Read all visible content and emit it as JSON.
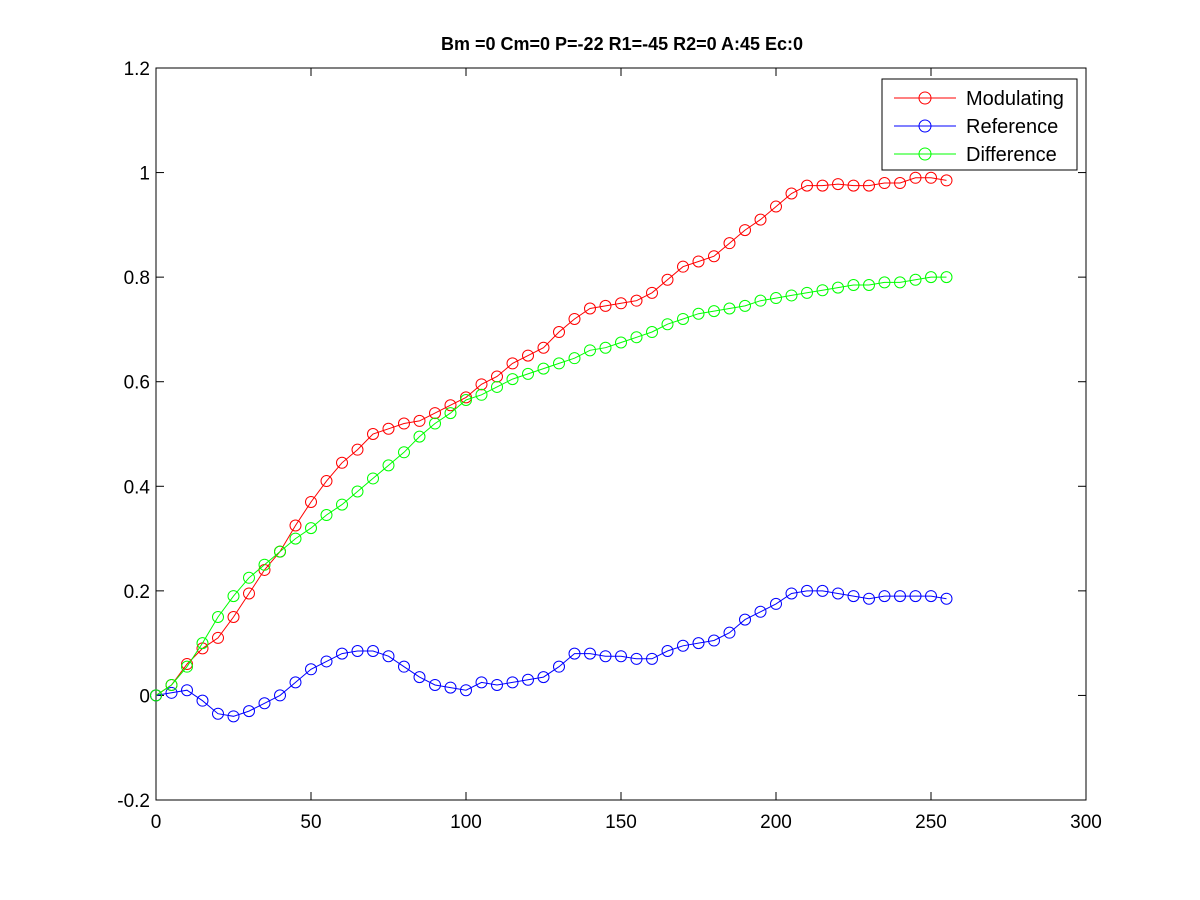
{
  "chart_data": {
    "type": "line",
    "title": "Bm =0  Cm=0  P=-22  R1=-45  R2=0  A:45  Ec:0",
    "xlabel": "",
    "ylabel": "",
    "xlim": [
      0,
      300
    ],
    "ylim": [
      -0.2,
      1.2
    ],
    "x_ticks": [
      0,
      50,
      100,
      150,
      200,
      250,
      300
    ],
    "x_tick_labels": [
      "0",
      "50",
      "100",
      "150",
      "200",
      "250",
      "300"
    ],
    "y_ticks": [
      -0.2,
      0,
      0.2,
      0.4,
      0.6,
      0.8,
      1,
      1.2
    ],
    "y_tick_labels": [
      "-0.2",
      "0",
      "0.2",
      "0.4",
      "0.6",
      "0.8",
      "1",
      "1.2"
    ],
    "grid": false,
    "legend_position": "top-right",
    "marker": "circle",
    "x": [
      0,
      5,
      10,
      15,
      20,
      25,
      30,
      35,
      40,
      45,
      50,
      55,
      60,
      65,
      70,
      75,
      80,
      85,
      90,
      95,
      100,
      105,
      110,
      115,
      120,
      125,
      130,
      135,
      140,
      145,
      150,
      155,
      160,
      165,
      170,
      175,
      180,
      185,
      190,
      195,
      200,
      205,
      210,
      215,
      220,
      225,
      230,
      235,
      240,
      245,
      250,
      255
    ],
    "series": [
      {
        "name": "Modulating",
        "color": "#ff0000",
        "values": [
          0,
          0.02,
          0.06,
          0.09,
          0.11,
          0.15,
          0.195,
          0.24,
          0.275,
          0.325,
          0.37,
          0.41,
          0.445,
          0.47,
          0.5,
          0.51,
          0.52,
          0.525,
          0.54,
          0.555,
          0.57,
          0.595,
          0.61,
          0.635,
          0.65,
          0.665,
          0.695,
          0.72,
          0.74,
          0.745,
          0.75,
          0.755,
          0.77,
          0.795,
          0.82,
          0.83,
          0.84,
          0.865,
          0.89,
          0.91,
          0.935,
          0.96,
          0.975,
          0.975,
          0.978,
          0.975,
          0.975,
          0.98,
          0.98,
          0.99,
          0.99,
          0.985
        ]
      },
      {
        "name": "Reference",
        "color": "#0000ff",
        "values": [
          0,
          0.005,
          0.01,
          -0.01,
          -0.035,
          -0.04,
          -0.03,
          -0.015,
          0,
          0.025,
          0.05,
          0.065,
          0.08,
          0.085,
          0.085,
          0.075,
          0.055,
          0.035,
          0.02,
          0.015,
          0.01,
          0.025,
          0.02,
          0.025,
          0.03,
          0.035,
          0.055,
          0.08,
          0.08,
          0.075,
          0.075,
          0.07,
          0.07,
          0.085,
          0.095,
          0.1,
          0.105,
          0.12,
          0.145,
          0.16,
          0.175,
          0.195,
          0.2,
          0.2,
          0.195,
          0.19,
          0.185,
          0.19,
          0.19,
          0.19,
          0.19,
          0.185
        ]
      },
      {
        "name": "Difference",
        "color": "#00ff00",
        "values": [
          0,
          0.02,
          0.055,
          0.1,
          0.15,
          0.19,
          0.225,
          0.25,
          0.275,
          0.3,
          0.32,
          0.345,
          0.365,
          0.39,
          0.415,
          0.44,
          0.465,
          0.495,
          0.52,
          0.54,
          0.565,
          0.575,
          0.59,
          0.605,
          0.615,
          0.625,
          0.635,
          0.645,
          0.66,
          0.665,
          0.675,
          0.685,
          0.695,
          0.71,
          0.72,
          0.73,
          0.735,
          0.74,
          0.745,
          0.755,
          0.76,
          0.765,
          0.77,
          0.775,
          0.78,
          0.785,
          0.785,
          0.79,
          0.79,
          0.795,
          0.8,
          0.8
        ]
      }
    ]
  }
}
